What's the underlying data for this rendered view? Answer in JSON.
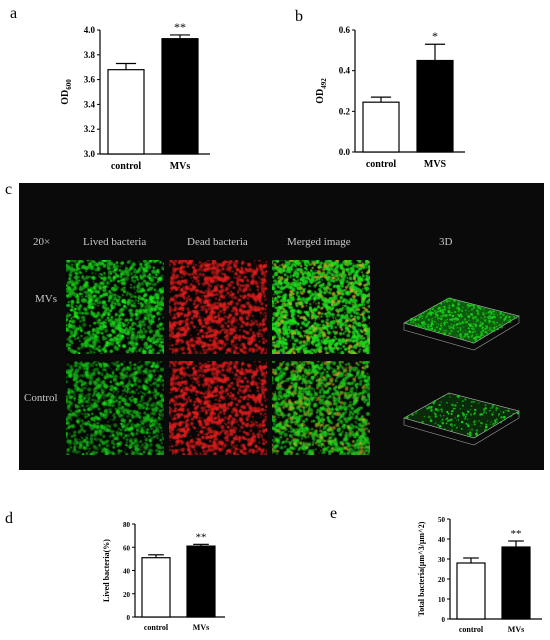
{
  "panels": {
    "a": "a",
    "b": "b",
    "c": "c",
    "d": "d",
    "e": "e"
  },
  "chart_data": [
    {
      "panel": "a",
      "type": "bar",
      "categories": [
        "control",
        "MVs"
      ],
      "values": [
        3.68,
        3.93
      ],
      "errors": [
        0.05,
        0.03
      ],
      "bar_colors": [
        "#ffffff",
        "#000000"
      ],
      "significance": [
        "",
        "**"
      ],
      "ylabel_main": "OD",
      "ylabel_sub": "600",
      "ylim": [
        3.0,
        4.0
      ],
      "yticks": [
        "3.0",
        "3.2",
        "3.4",
        "3.6",
        "3.8",
        "4.0"
      ]
    },
    {
      "panel": "b",
      "type": "bar",
      "categories": [
        "control",
        "MVS"
      ],
      "values": [
        0.245,
        0.45
      ],
      "errors": [
        0.025,
        0.08
      ],
      "bar_colors": [
        "#ffffff",
        "#000000"
      ],
      "significance": [
        "",
        "*"
      ],
      "ylabel_main": "OD",
      "ylabel_sub": "492",
      "ylim": [
        0.0,
        0.6
      ],
      "yticks": [
        "0.0",
        "0.2",
        "0.4",
        "0.6"
      ]
    },
    {
      "panel": "d",
      "type": "bar",
      "categories": [
        "control",
        "MVs"
      ],
      "values": [
        51,
        61
      ],
      "errors": [
        2.5,
        1.5
      ],
      "bar_colors": [
        "#ffffff",
        "#000000"
      ],
      "significance": [
        "",
        "**"
      ],
      "ylabel_main": "Lived bacteria(%)",
      "ylim": [
        0,
        80
      ],
      "yticks": [
        "0",
        "20",
        "40",
        "60",
        "80"
      ]
    },
    {
      "panel": "e",
      "type": "bar",
      "categories": [
        "control",
        "MVs"
      ],
      "values": [
        28,
        36
      ],
      "errors": [
        2.5,
        3
      ],
      "bar_colors": [
        "#ffffff",
        "#000000"
      ],
      "significance": [
        "",
        "**"
      ],
      "ylabel_main": "Total bacteria(μm^3/μm^2)",
      "ylim": [
        0,
        50
      ],
      "yticks": [
        "0",
        "10",
        "20",
        "30",
        "40",
        "50"
      ]
    }
  ],
  "microscopy": {
    "magnification": "20×",
    "columns": [
      "Lived bacteria",
      "Dead bacteria",
      "Merged image",
      "3D"
    ],
    "rows": [
      "MVs",
      "Control"
    ],
    "colors": {
      "live": "#19d219",
      "dead": "#e01e1e",
      "background": "#0a0a0a"
    }
  }
}
